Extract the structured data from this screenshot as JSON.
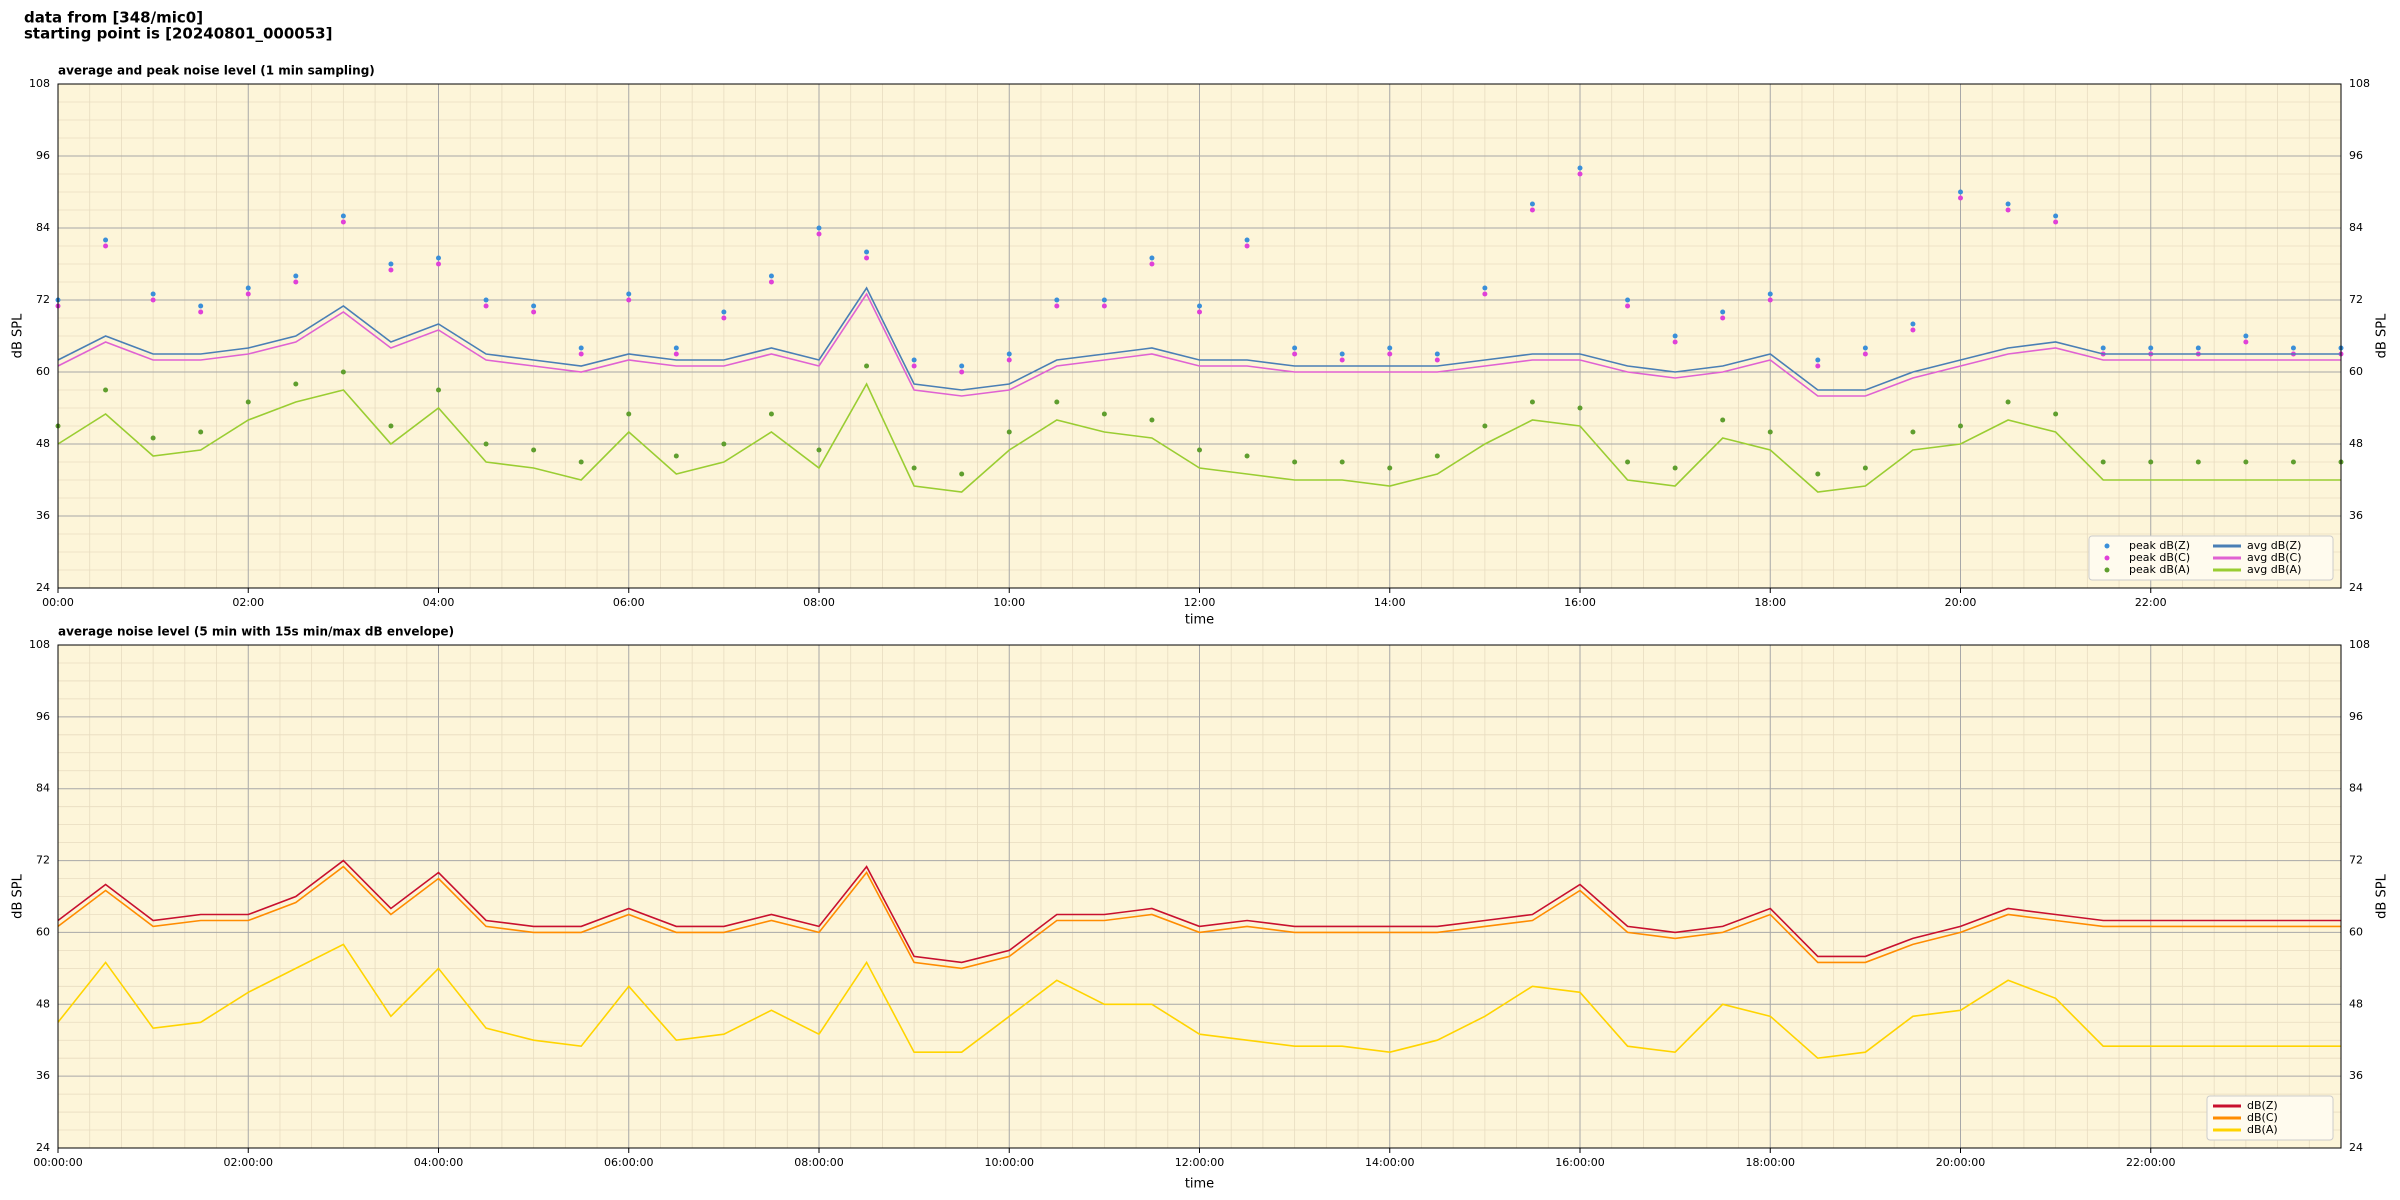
{
  "header": {
    "line1": "data from [348/mic0]",
    "line2": "starting point is [20240801_000053]"
  },
  "chart_data": [
    {
      "type": "line",
      "title": "average and peak noise level (1 min sampling)",
      "xlabel": "time",
      "ylabel": "dB SPL",
      "background": "#fdf5d9",
      "grid": true,
      "legend": "lower right",
      "legend_columns": 2,
      "xlim": [
        0,
        1440
      ],
      "ylim": [
        24,
        108
      ],
      "xticks": [
        {
          "value": 0,
          "label": "00:00"
        },
        {
          "value": 120,
          "label": "02:00"
        },
        {
          "value": 240,
          "label": "04:00"
        },
        {
          "value": 360,
          "label": "06:00"
        },
        {
          "value": 480,
          "label": "08:00"
        },
        {
          "value": 600,
          "label": "10:00"
        },
        {
          "value": 720,
          "label": "12:00"
        },
        {
          "value": 840,
          "label": "14:00"
        },
        {
          "value": 960,
          "label": "16:00"
        },
        {
          "value": 1080,
          "label": "18:00"
        },
        {
          "value": 1200,
          "label": "20:00"
        },
        {
          "value": 1320,
          "label": "22:00"
        }
      ],
      "yticks": [
        24,
        36,
        48,
        60,
        72,
        84,
        96,
        108
      ],
      "x": [
        0,
        30,
        60,
        90,
        120,
        150,
        180,
        210,
        240,
        270,
        300,
        330,
        360,
        390,
        420,
        450,
        480,
        510,
        540,
        570,
        600,
        630,
        660,
        690,
        720,
        750,
        780,
        810,
        840,
        870,
        900,
        930,
        960,
        990,
        1020,
        1050,
        1080,
        1110,
        1140,
        1170,
        1200,
        1230,
        1260,
        1290,
        1320,
        1350,
        1380,
        1410,
        1440
      ],
      "series": [
        {
          "name": "peak dB(Z)",
          "kind": "scatter",
          "color": "#3a8fd9",
          "values": [
            72,
            82,
            73,
            71,
            74,
            76,
            86,
            78,
            79,
            72,
            71,
            64,
            73,
            64,
            70,
            76,
            84,
            80,
            62,
            61,
            63,
            72,
            72,
            79,
            71,
            82,
            64,
            63,
            64,
            63,
            74,
            88,
            94,
            72,
            66,
            70,
            73,
            62,
            64,
            68,
            90,
            88,
            86,
            64,
            64,
            64,
            66,
            64,
            64
          ]
        },
        {
          "name": "peak dB(C)",
          "kind": "scatter",
          "color": "#e040d8",
          "values": [
            71,
            81,
            72,
            70,
            73,
            75,
            85,
            77,
            78,
            71,
            70,
            63,
            72,
            63,
            69,
            75,
            83,
            79,
            61,
            60,
            62,
            71,
            71,
            78,
            70,
            81,
            63,
            62,
            63,
            62,
            73,
            87,
            93,
            71,
            65,
            69,
            72,
            61,
            63,
            67,
            89,
            87,
            85,
            63,
            63,
            63,
            65,
            63,
            63
          ]
        },
        {
          "name": "peak dB(A)",
          "kind": "scatter",
          "color": "#5f9e2e",
          "values": [
            51,
            57,
            49,
            50,
            55,
            58,
            60,
            51,
            57,
            48,
            47,
            45,
            53,
            46,
            48,
            53,
            47,
            61,
            44,
            43,
            50,
            55,
            53,
            52,
            47,
            46,
            45,
            45,
            44,
            46,
            51,
            55,
            54,
            45,
            44,
            52,
            50,
            43,
            44,
            50,
            51,
            55,
            53,
            45,
            45,
            45,
            45,
            45,
            45
          ]
        },
        {
          "name": "avg dB(Z)",
          "kind": "line",
          "color": "#4a7fb5",
          "values": [
            62,
            66,
            63,
            63,
            64,
            66,
            71,
            65,
            68,
            63,
            62,
            61,
            63,
            62,
            62,
            64,
            62,
            74,
            58,
            57,
            58,
            62,
            63,
            64,
            62,
            62,
            61,
            61,
            61,
            61,
            62,
            63,
            63,
            61,
            60,
            61,
            63,
            57,
            57,
            60,
            62,
            64,
            65,
            63,
            63,
            63,
            63,
            63,
            63
          ]
        },
        {
          "name": "avg dB(C)",
          "kind": "line",
          "color": "#e062d2",
          "values": [
            61,
            65,
            62,
            62,
            63,
            65,
            70,
            64,
            67,
            62,
            61,
            60,
            62,
            61,
            61,
            63,
            61,
            73,
            57,
            56,
            57,
            61,
            62,
            63,
            61,
            61,
            60,
            60,
            60,
            60,
            61,
            62,
            62,
            60,
            59,
            60,
            62,
            56,
            56,
            59,
            61,
            63,
            64,
            62,
            62,
            62,
            62,
            62,
            62
          ]
        },
        {
          "name": "avg dB(A)",
          "kind": "line",
          "color": "#9acd32",
          "values": [
            48,
            53,
            46,
            47,
            52,
            55,
            57,
            48,
            54,
            45,
            44,
            42,
            50,
            43,
            45,
            50,
            44,
            58,
            41,
            40,
            47,
            52,
            50,
            49,
            44,
            43,
            42,
            42,
            41,
            43,
            48,
            52,
            51,
            42,
            41,
            49,
            47,
            40,
            41,
            47,
            48,
            52,
            50,
            42,
            42,
            42,
            42,
            42,
            42
          ]
        }
      ]
    },
    {
      "type": "line",
      "title": "average noise level (5 min with 15s min/max dB envelope)",
      "xlabel": "time",
      "ylabel": "dB SPL",
      "background": "#fdf5d9",
      "grid": true,
      "legend": "lower right",
      "legend_columns": 1,
      "xlim": [
        0,
        1440
      ],
      "ylim": [
        24,
        108
      ],
      "xticks": [
        {
          "value": 0,
          "label": "00:00:00"
        },
        {
          "value": 120,
          "label": "02:00:00"
        },
        {
          "value": 240,
          "label": "04:00:00"
        },
        {
          "value": 360,
          "label": "06:00:00"
        },
        {
          "value": 480,
          "label": "08:00:00"
        },
        {
          "value": 600,
          "label": "10:00:00"
        },
        {
          "value": 720,
          "label": "12:00:00"
        },
        {
          "value": 840,
          "label": "14:00:00"
        },
        {
          "value": 960,
          "label": "16:00:00"
        },
        {
          "value": 1080,
          "label": "18:00:00"
        },
        {
          "value": 1200,
          "label": "20:00:00"
        },
        {
          "value": 1320,
          "label": "22:00:00"
        }
      ],
      "yticks": [
        24,
        36,
        48,
        60,
        72,
        84,
        96,
        108
      ],
      "x": [
        0,
        30,
        60,
        90,
        120,
        150,
        180,
        210,
        240,
        270,
        300,
        330,
        360,
        390,
        420,
        450,
        480,
        510,
        540,
        570,
        600,
        630,
        660,
        690,
        720,
        750,
        780,
        810,
        840,
        870,
        900,
        930,
        960,
        990,
        1020,
        1050,
        1080,
        1110,
        1140,
        1170,
        1200,
        1230,
        1260,
        1290,
        1320,
        1350,
        1380,
        1410,
        1440
      ],
      "series": [
        {
          "name": "dB(Z)",
          "kind": "line",
          "color": "#c8102e",
          "values": [
            62,
            68,
            62,
            63,
            63,
            66,
            72,
            64,
            70,
            62,
            61,
            61,
            64,
            61,
            61,
            63,
            61,
            71,
            56,
            55,
            57,
            63,
            63,
            64,
            61,
            62,
            61,
            61,
            61,
            61,
            62,
            63,
            68,
            61,
            60,
            61,
            64,
            56,
            56,
            59,
            61,
            64,
            63,
            62,
            62,
            62,
            62,
            62,
            62
          ]
        },
        {
          "name": "dB(C)",
          "kind": "line",
          "color": "#ff8c00",
          "values": [
            61,
            67,
            61,
            62,
            62,
            65,
            71,
            63,
            69,
            61,
            60,
            60,
            63,
            60,
            60,
            62,
            60,
            70,
            55,
            54,
            56,
            62,
            62,
            63,
            60,
            61,
            60,
            60,
            60,
            60,
            61,
            62,
            67,
            60,
            59,
            60,
            63,
            55,
            55,
            58,
            60,
            63,
            62,
            61,
            61,
            61,
            61,
            61,
            61
          ]
        },
        {
          "name": "dB(A)",
          "kind": "line",
          "color": "#ffd400",
          "values": [
            45,
            55,
            44,
            45,
            50,
            54,
            58,
            46,
            54,
            44,
            42,
            41,
            51,
            42,
            43,
            47,
            43,
            55,
            40,
            40,
            46,
            52,
            48,
            48,
            43,
            42,
            41,
            41,
            40,
            42,
            46,
            51,
            50,
            41,
            40,
            48,
            46,
            39,
            40,
            46,
            47,
            52,
            49,
            41,
            41,
            41,
            41,
            41,
            41
          ]
        }
      ]
    }
  ]
}
